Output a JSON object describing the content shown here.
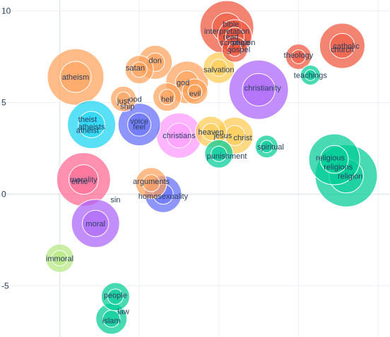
{
  "chart_data": {
    "type": "scatter",
    "title": "",
    "xlabel": "",
    "ylabel": "",
    "xlim": [
      -1.5,
      8.3
    ],
    "ylim": [
      -7.8,
      10.6
    ],
    "x_gridlines": [
      0,
      2,
      4,
      6,
      8
    ],
    "y_ticks": [
      10,
      5,
      0,
      -5
    ],
    "y_tick_labels": [
      "10",
      "5",
      "0",
      "-5"
    ],
    "grid": true,
    "legend": "none",
    "colors": {
      "red": "#ef553b",
      "orange": "#ffa15a",
      "purple": "#ab63fa",
      "teal": "#00cc96",
      "cyan": "#19d3f3",
      "blue": "#636efa",
      "pink": "#ff6692",
      "lime": "#b6e880",
      "salmon": "#ff97ff",
      "yellow": "#fecb52"
    },
    "series": [
      {
        "label": "atheism",
        "x": 0.4,
        "y": 6.4,
        "size": 40,
        "color": "orange"
      },
      {
        "label": "satan",
        "x": 2.0,
        "y": 6.8,
        "size": 20,
        "color": "orange"
      },
      {
        "label": "don",
        "x": 2.4,
        "y": 7.2,
        "size": 24,
        "color": "orange"
      },
      {
        "label": "god",
        "x": 3.2,
        "y": 6.1,
        "size": 30,
        "color": "orange"
      },
      {
        "label": "jesus",
        "x": 1.6,
        "y": 5.2,
        "size": 18,
        "color": "orange"
      },
      {
        "label": "hell",
        "x": 2.7,
        "y": 5.3,
        "size": 20,
        "color": "orange"
      },
      {
        "label": "evil",
        "x": 3.4,
        "y": 5.6,
        "size": 18,
        "color": "orange"
      },
      {
        "label": "salvation",
        "x": 4.0,
        "y": 6.9,
        "size": 22,
        "color": "yellow"
      },
      {
        "label": "interpretation",
        "x": 4.2,
        "y": 9.1,
        "size": 38,
        "color": "red"
      },
      {
        "label": "scripture",
        "x": 4.4,
        "y": 8.6,
        "size": 24,
        "color": "red"
      },
      {
        "label": "gospel",
        "x": 4.4,
        "y": 7.9,
        "size": 18,
        "color": "red"
      },
      {
        "label": "christianity",
        "x": 5.0,
        "y": 5.7,
        "size": 42,
        "color": "purple"
      },
      {
        "label": "catholic",
        "x": 7.1,
        "y": 8.1,
        "size": 32,
        "color": "red"
      },
      {
        "label": "theology",
        "x": 6.0,
        "y": 7.5,
        "size": 18,
        "color": "red"
      },
      {
        "label": "teachings",
        "x": 6.3,
        "y": 6.5,
        "size": 14,
        "color": "teal"
      },
      {
        "label": "christians",
        "x": 3.0,
        "y": 3.2,
        "size": 32,
        "color": "salmon"
      },
      {
        "label": "heaven",
        "x": 3.8,
        "y": 3.4,
        "size": 22,
        "color": "yellow"
      },
      {
        "label": "christ",
        "x": 4.4,
        "y": 3.2,
        "size": 26,
        "color": "yellow"
      },
      {
        "label": "spiritual",
        "x": 5.2,
        "y": 2.6,
        "size": 16,
        "color": "teal"
      },
      {
        "label": "punishment",
        "x": 4.0,
        "y": 2.2,
        "size": 20,
        "color": "teal"
      },
      {
        "label": "theist",
        "x": 0.8,
        "y": 3.8,
        "size": 34,
        "color": "cyan"
      },
      {
        "label": "voice",
        "x": 2.0,
        "y": 3.8,
        "size": 30,
        "color": "blue"
      },
      {
        "label": "morality",
        "x": 0.6,
        "y": 0.8,
        "size": 38,
        "color": "pink"
      },
      {
        "label": "arguments",
        "x": 2.3,
        "y": 0.6,
        "size": 22,
        "color": "orange"
      },
      {
        "label": "homosexuality",
        "x": 2.6,
        "y": 0.0,
        "size": 26,
        "color": "blue"
      },
      {
        "label": "moral",
        "x": 0.9,
        "y": -1.6,
        "size": 34,
        "color": "purple"
      },
      {
        "label": "immoral",
        "x": 0.0,
        "y": -3.5,
        "size": 20,
        "color": "lime"
      },
      {
        "label": "religious",
        "x": 6.9,
        "y": 1.9,
        "size": 36,
        "color": "teal"
      },
      {
        "label": "religion",
        "x": 7.2,
        "y": 1.0,
        "size": 44,
        "color": "teal"
      },
      {
        "label": "people",
        "x": 1.4,
        "y": -5.6,
        "size": 20,
        "color": "teal"
      },
      {
        "label": "islam",
        "x": 1.3,
        "y": -6.8,
        "size": 22,
        "color": "teal"
      }
    ],
    "labels": [
      {
        "text": "atheism",
        "x": 0.4,
        "y": 6.4
      },
      {
        "text": "satan",
        "x": 1.9,
        "y": 6.9
      },
      {
        "text": "don",
        "x": 2.4,
        "y": 7.3
      },
      {
        "text": "god",
        "x": 3.1,
        "y": 6.1
      },
      {
        "text": "just",
        "x": 1.6,
        "y": 5.1
      },
      {
        "text": "ood",
        "x": 1.9,
        "y": 5.2
      },
      {
        "text": "hell",
        "x": 2.7,
        "y": 5.2
      },
      {
        "text": "ship",
        "x": 1.7,
        "y": 4.8
      },
      {
        "text": "evil",
        "x": 3.4,
        "y": 5.5
      },
      {
        "text": "salvation",
        "x": 4.0,
        "y": 6.8
      },
      {
        "text": "bible",
        "x": 4.3,
        "y": 9.3
      },
      {
        "text": "interpretation",
        "x": 4.2,
        "y": 8.9
      },
      {
        "text": "read",
        "x": 4.3,
        "y": 8.6
      },
      {
        "text": "scripture",
        "x": 4.4,
        "y": 8.3
      },
      {
        "text": "religion",
        "x": 4.6,
        "y": 8.3
      },
      {
        "text": "gospel",
        "x": 4.5,
        "y": 7.9
      },
      {
        "text": "christianity",
        "x": 5.1,
        "y": 5.8
      },
      {
        "text": "catholic",
        "x": 7.2,
        "y": 8.1
      },
      {
        "text": "church",
        "x": 7.1,
        "y": 7.9
      },
      {
        "text": "theology",
        "x": 6.0,
        "y": 7.6
      },
      {
        "text": "teachings",
        "x": 6.3,
        "y": 6.5
      },
      {
        "text": "christians",
        "x": 3.0,
        "y": 3.2
      },
      {
        "text": "heaven",
        "x": 3.8,
        "y": 3.4
      },
      {
        "text": "jesus",
        "x": 4.1,
        "y": 3.2
      },
      {
        "text": "christ",
        "x": 4.6,
        "y": 3.1
      },
      {
        "text": "spiritual",
        "x": 5.3,
        "y": 2.6
      },
      {
        "text": "punishment",
        "x": 4.2,
        "y": 2.1
      },
      {
        "text": "theist",
        "x": 0.7,
        "y": 4.1
      },
      {
        "text": "atheists",
        "x": 0.8,
        "y": 3.7
      },
      {
        "text": "atheist",
        "x": 0.7,
        "y": 3.5
      },
      {
        "text": "voice",
        "x": 2.0,
        "y": 4.0
      },
      {
        "text": "feel",
        "x": 2.0,
        "y": 3.7
      },
      {
        "text": "morality",
        "x": 0.6,
        "y": 0.8
      },
      {
        "text": "ethic",
        "x": 0.5,
        "y": 0.7
      },
      {
        "text": "arguments",
        "x": 2.3,
        "y": 0.7
      },
      {
        "text": "homosexuality",
        "x": 2.6,
        "y": -0.1
      },
      {
        "text": "sin",
        "x": 1.4,
        "y": -0.3
      },
      {
        "text": "moral",
        "x": 0.9,
        "y": -1.6
      },
      {
        "text": "immoral",
        "x": 0.0,
        "y": -3.5
      },
      {
        "text": "religious",
        "x": 6.8,
        "y": 2.0
      },
      {
        "text": "religions",
        "x": 7.0,
        "y": 1.5
      },
      {
        "text": "religion",
        "x": 7.3,
        "y": 1.0
      },
      {
        "text": "people",
        "x": 1.4,
        "y": -5.5
      },
      {
        "text": "law",
        "x": 1.6,
        "y": -6.4
      },
      {
        "text": "islam",
        "x": 1.3,
        "y": -6.9
      }
    ]
  }
}
